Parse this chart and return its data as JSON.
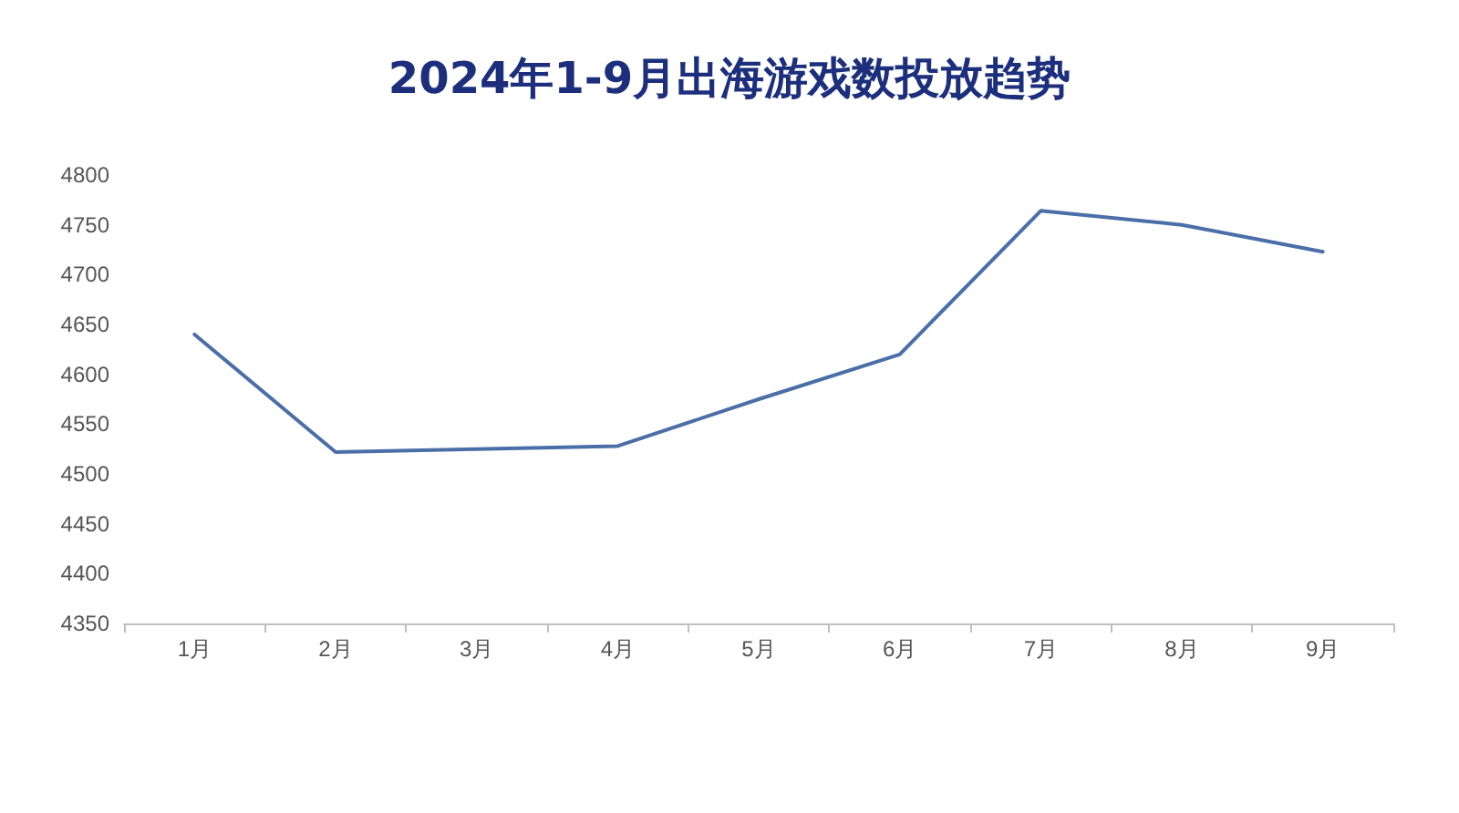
{
  "chart_data": {
    "type": "line",
    "title": "2024年1-9月出海游戏数投放趋势",
    "categories": [
      "1月",
      "2月",
      "3月",
      "4月",
      "5月",
      "6月",
      "7月",
      "8月",
      "9月"
    ],
    "series": [
      {
        "color": "#4a6fa8",
        "values": [
          4640,
          4522,
          4525,
          4528,
          4575,
          4620,
          4764,
          4750,
          4723
        ]
      }
    ],
    "ylim": [
      4350,
      4800
    ],
    "yticks": [
      4350,
      4400,
      4450,
      4500,
      4550,
      4600,
      4650,
      4700,
      4750,
      4800
    ],
    "grid": false,
    "marker": "none",
    "line_style": "solid"
  }
}
